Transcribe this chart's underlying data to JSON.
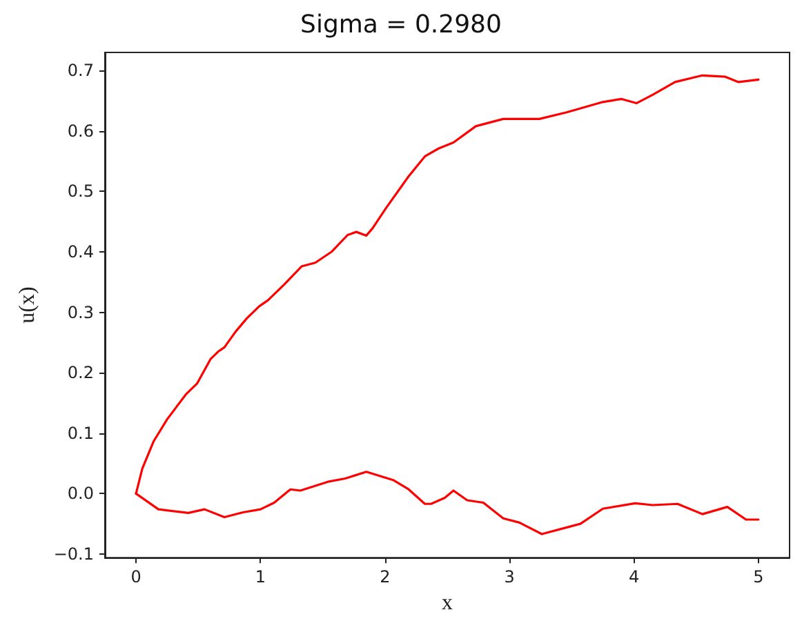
{
  "chart_data": {
    "type": "line",
    "title": "Sigma = 0.2980",
    "xlabel": "x",
    "ylabel": "u(x)",
    "xlim": [
      -0.25,
      5.25
    ],
    "xticks": [
      0,
      1,
      2,
      3,
      4,
      5
    ],
    "ylim": [
      -0.106,
      0.73
    ],
    "yticks": [
      {
        "value": -0.1,
        "label": "−0.1"
      },
      {
        "value": 0,
        "label": "0.0"
      },
      0.1,
      0.2,
      0.3,
      0.4,
      0.5,
      0.6,
      0.7
    ],
    "grid": false,
    "marker": "none",
    "line_style": "solid",
    "series": [
      {
        "color": "#ff0000",
        "x": [
          0,
          0.05,
          0.14,
          0.25,
          0.4,
          0.49,
          0.6,
          0.66,
          0.71,
          0.8,
          0.89,
          0.99,
          1.06,
          1.19,
          1.33,
          1.44,
          1.57,
          1.7,
          1.77,
          1.85,
          1.9,
          2.01,
          2.19,
          2.32,
          2.43,
          2.55,
          2.73,
          2.95,
          3.24,
          3.46,
          3.75,
          3.9,
          4.02,
          4.15,
          4.33,
          4.55,
          4.73,
          4.84,
          5.0
        ],
        "values": [
          0,
          0.041,
          0.086,
          0.123,
          0.164,
          0.182,
          0.223,
          0.235,
          0.242,
          0.268,
          0.29,
          0.31,
          0.32,
          0.346,
          0.376,
          0.382,
          0.4,
          0.428,
          0.433,
          0.427,
          0.439,
          0.473,
          0.525,
          0.558,
          0.571,
          0.581,
          0.608,
          0.62,
          0.62,
          0.631,
          0.648,
          0.653,
          0.646,
          0.66,
          0.681,
          0.692,
          0.69,
          0.681,
          0.685
        ]
      },
      {
        "color": "#ff0000",
        "x": [
          0,
          0.18,
          0.42,
          0.55,
          0.71,
          0.86,
          1.0,
          1.11,
          1.24,
          1.32,
          1.55,
          1.68,
          1.85,
          2.07,
          2.19,
          2.32,
          2.37,
          2.48,
          2.55,
          2.66,
          2.79,
          2.95,
          3.08,
          3.26,
          3.46,
          3.57,
          3.75,
          4.01,
          4.15,
          4.35,
          4.55,
          4.75,
          4.9,
          5.0
        ],
        "values": [
          0,
          -0.026,
          -0.032,
          -0.026,
          -0.039,
          -0.031,
          -0.026,
          -0.015,
          0.007,
          0.005,
          0.02,
          0.025,
          0.036,
          0.022,
          0.007,
          -0.017,
          -0.017,
          -0.007,
          0.005,
          -0.011,
          -0.015,
          -0.041,
          -0.048,
          -0.067,
          -0.056,
          -0.05,
          -0.025,
          -0.016,
          -0.019,
          -0.017,
          -0.034,
          -0.022,
          -0.043,
          -0.043
        ]
      }
    ]
  }
}
